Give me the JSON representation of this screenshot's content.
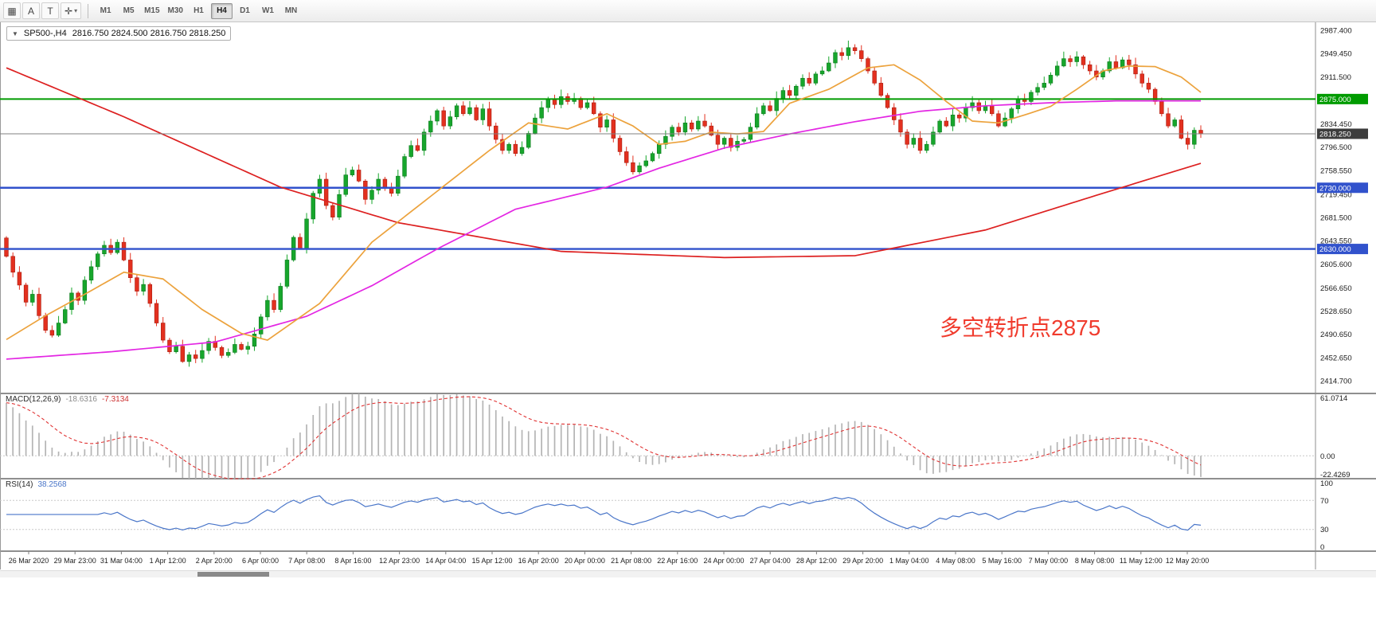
{
  "toolbar": {
    "indicators_icon": "▦",
    "a_label": "A",
    "t_label": "T",
    "cursor_icon": "✛",
    "dropdown_icon": "▾",
    "timeframes": [
      "M1",
      "M5",
      "M15",
      "M30",
      "H1",
      "H4",
      "D1",
      "W1",
      "MN"
    ],
    "active_timeframe": "H4"
  },
  "chart": {
    "collapse_arrow": "▼",
    "title": "SP500-,H4",
    "ohlc": "2816.750 2824.500 2816.750 2818.250",
    "annotation": "多空转折点2875",
    "current_price": 2818.25,
    "current_price_label": "2818.250",
    "hlines": [
      {
        "price": 2875.0,
        "label": "2875.000",
        "color": "#009b00",
        "width": 2
      },
      {
        "price": 2730.0,
        "label": "2730.000",
        "color": "#3152cc",
        "width": 2.4
      },
      {
        "price": 2630.0,
        "label": "2630.000",
        "color": "#3152cc",
        "width": 2.4
      }
    ],
    "price_ticks": [
      2987.4,
      2949.45,
      2911.5,
      2834.45,
      2796.5,
      2758.55,
      2719.45,
      2681.5,
      2643.55,
      2605.6,
      2566.65,
      2528.65,
      2490.65,
      2452.65,
      2414.7
    ]
  },
  "macd": {
    "name": "MACD(12,26,9)",
    "value": "-18.6316",
    "signal": "-7.3134",
    "axis": {
      "top": "61.0714",
      "zero": "0.00",
      "bottom": "-22.4269"
    },
    "max": 61.0714,
    "min": -22.4269
  },
  "rsi": {
    "name": "RSI(14)",
    "value": "38.2568",
    "levels": [
      100,
      70,
      30,
      0
    ],
    "dashed_levels": [
      70,
      30
    ]
  },
  "time_axis": [
    "26 Mar 2020",
    "29 Mar 23:00",
    "31 Mar 04:00",
    "1 Apr 12:00",
    "2 Apr 20:00",
    "6 Apr 00:00",
    "7 Apr 08:00",
    "8 Apr 16:00",
    "12 Apr 23:00",
    "14 Apr 04:00",
    "15 Apr 12:00",
    "16 Apr 20:00",
    "20 Apr 00:00",
    "21 Apr 08:00",
    "22 Apr 16:00",
    "24 Apr 00:00",
    "27 Apr 04:00",
    "28 Apr 12:00",
    "29 Apr 20:00",
    "1 May 04:00",
    "4 May 08:00",
    "5 May 16:00",
    "7 May 00:00",
    "8 May 08:00",
    "11 May 12:00",
    "12 May 20:00"
  ],
  "chart_data": {
    "type": "candlestick",
    "symbol": "SP500-",
    "timeframe": "H4",
    "price_range": [
      2414.7,
      2987.4
    ],
    "first_open": 2648,
    "closes": [
      2618,
      2592,
      2571,
      2543,
      2556,
      2521,
      2497,
      2489,
      2509,
      2531,
      2558,
      2546,
      2579,
      2601,
      2622,
      2636,
      2624,
      2641,
      2612,
      2583,
      2561,
      2572,
      2541,
      2509,
      2481,
      2462,
      2471,
      2446,
      2457,
      2451,
      2464,
      2479,
      2469,
      2456,
      2461,
      2474,
      2466,
      2471,
      2491,
      2519,
      2546,
      2531,
      2569,
      2612,
      2649,
      2631,
      2679,
      2721,
      2744,
      2701,
      2682,
      2719,
      2751,
      2759,
      2741,
      2711,
      2726,
      2744,
      2731,
      2721,
      2749,
      2781,
      2799,
      2791,
      2821,
      2839,
      2856,
      2831,
      2846,
      2864,
      2851,
      2861,
      2841,
      2859,
      2831,
      2809,
      2791,
      2801,
      2786,
      2796,
      2819,
      2844,
      2861,
      2874,
      2866,
      2879,
      2871,
      2876,
      2861,
      2869,
      2851,
      2829,
      2841,
      2811,
      2789,
      2771,
      2756,
      2766,
      2774,
      2786,
      2801,
      2814,
      2829,
      2821,
      2836,
      2826,
      2839,
      2831,
      2816,
      2801,
      2811,
      2796,
      2806,
      2809,
      2829,
      2851,
      2864,
      2856,
      2876,
      2889,
      2881,
      2896,
      2909,
      2901,
      2916,
      2921,
      2934,
      2951,
      2946,
      2959,
      2954,
      2941,
      2921,
      2901,
      2881,
      2861,
      2841,
      2821,
      2801,
      2811,
      2791,
      2801,
      2821,
      2839,
      2831,
      2849,
      2844,
      2861,
      2869,
      2856,
      2864,
      2851,
      2831,
      2844,
      2859,
      2874,
      2871,
      2886,
      2894,
      2901,
      2914,
      2929,
      2941,
      2936,
      2944,
      2931,
      2921,
      2911,
      2921,
      2936,
      2926,
      2939,
      2931,
      2916,
      2901,
      2891,
      2871,
      2851,
      2831,
      2841,
      2811,
      2801,
      2824,
      2818.25
    ],
    "ma_red": [
      [
        0,
        2926
      ],
      [
        18,
        2846
      ],
      [
        42,
        2731
      ],
      [
        60,
        2673
      ],
      [
        85,
        2626
      ],
      [
        110,
        2616
      ],
      [
        130,
        2619
      ],
      [
        150,
        2661
      ],
      [
        168,
        2721
      ],
      [
        183,
        2770
      ]
    ],
    "ma_magenta": [
      [
        0,
        2450
      ],
      [
        16,
        2462
      ],
      [
        32,
        2478
      ],
      [
        46,
        2520
      ],
      [
        56,
        2570
      ],
      [
        66,
        2630
      ],
      [
        78,
        2695
      ],
      [
        92,
        2731
      ],
      [
        100,
        2762
      ],
      [
        110,
        2795
      ],
      [
        120,
        2818
      ],
      [
        130,
        2838
      ],
      [
        140,
        2855
      ],
      [
        150,
        2864
      ],
      [
        160,
        2869
      ],
      [
        170,
        2872
      ],
      [
        183,
        2872
      ]
    ],
    "ma_orange": [
      [
        0,
        2482
      ],
      [
        6,
        2521
      ],
      [
        12,
        2556
      ],
      [
        18,
        2592
      ],
      [
        24,
        2581
      ],
      [
        30,
        2531
      ],
      [
        36,
        2492
      ],
      [
        40,
        2481
      ],
      [
        48,
        2541
      ],
      [
        56,
        2641
      ],
      [
        62,
        2691
      ],
      [
        68,
        2741
      ],
      [
        74,
        2791
      ],
      [
        80,
        2836
      ],
      [
        86,
        2826
      ],
      [
        92,
        2851
      ],
      [
        96,
        2831
      ],
      [
        100,
        2801
      ],
      [
        104,
        2806
      ],
      [
        108,
        2821
      ],
      [
        112,
        2818
      ],
      [
        116,
        2822
      ],
      [
        120,
        2868
      ],
      [
        126,
        2891
      ],
      [
        132,
        2926
      ],
      [
        136,
        2931
      ],
      [
        140,
        2906
      ],
      [
        144,
        2871
      ],
      [
        148,
        2839
      ],
      [
        152,
        2836
      ],
      [
        156,
        2849
      ],
      [
        160,
        2863
      ],
      [
        164,
        2891
      ],
      [
        168,
        2921
      ],
      [
        172,
        2929
      ],
      [
        176,
        2928
      ],
      [
        180,
        2911
      ],
      [
        183,
        2886
      ]
    ],
    "macd_seed": [
      2600,
      2548
    ]
  },
  "colors": {
    "candle_up": "#17a62c",
    "candle_up_stroke": "#0d7a1e",
    "candle_down": "#e3301f",
    "candle_down_stroke": "#a81d10",
    "ma_slow": "#dd2020",
    "ma_mid": "#e326e3",
    "ma_fast": "#eca23c",
    "current_price_line": "#808080",
    "current_price_bg": "#3c3c3c",
    "macd_hist": "#b4b4b4",
    "macd_signal": "#e03232",
    "rsi_line": "#4a76c9",
    "grid_dash": "#c8c8c8",
    "separator": "#8f8f8f",
    "annotation": "#f03b2d"
  }
}
